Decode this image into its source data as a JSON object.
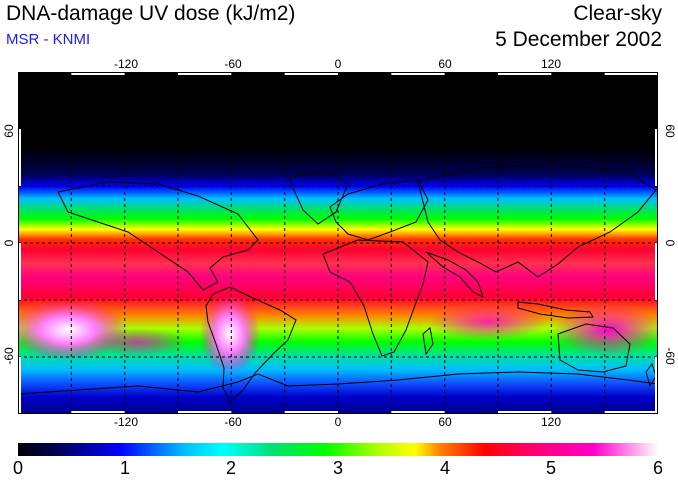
{
  "header": {
    "title": "DNA-damage UV dose (kJ/m2)",
    "source": "MSR - KNMI",
    "condition": "Clear-sky",
    "date": "5 December 2002"
  },
  "colors": {
    "source_text": "#1a1aff",
    "colorbar_stops": [
      "#000000",
      "#000055",
      "#0000ff",
      "#00bfff",
      "#00ffff",
      "#00e070",
      "#00ff00",
      "#aaff00",
      "#ffff00",
      "#ff8000",
      "#ff0000",
      "#ff0066",
      "#ff00cc",
      "#ffffff"
    ]
  },
  "map": {
    "longitude_ticks": [
      "-120",
      "-60",
      "0",
      "60",
      "120"
    ],
    "latitude_ticks_left": [
      "60",
      "0",
      "-60"
    ],
    "latitude_ticks_right": [
      "60",
      "0",
      "-60"
    ],
    "projection": "equirectangular",
    "lon_range": [
      -180,
      180
    ],
    "lat_range": [
      -90,
      90
    ]
  },
  "colorbar": {
    "min": 0,
    "max": 6,
    "tick_labels": [
      "0",
      "1",
      "2",
      "3",
      "4",
      "5",
      "6"
    ]
  }
}
